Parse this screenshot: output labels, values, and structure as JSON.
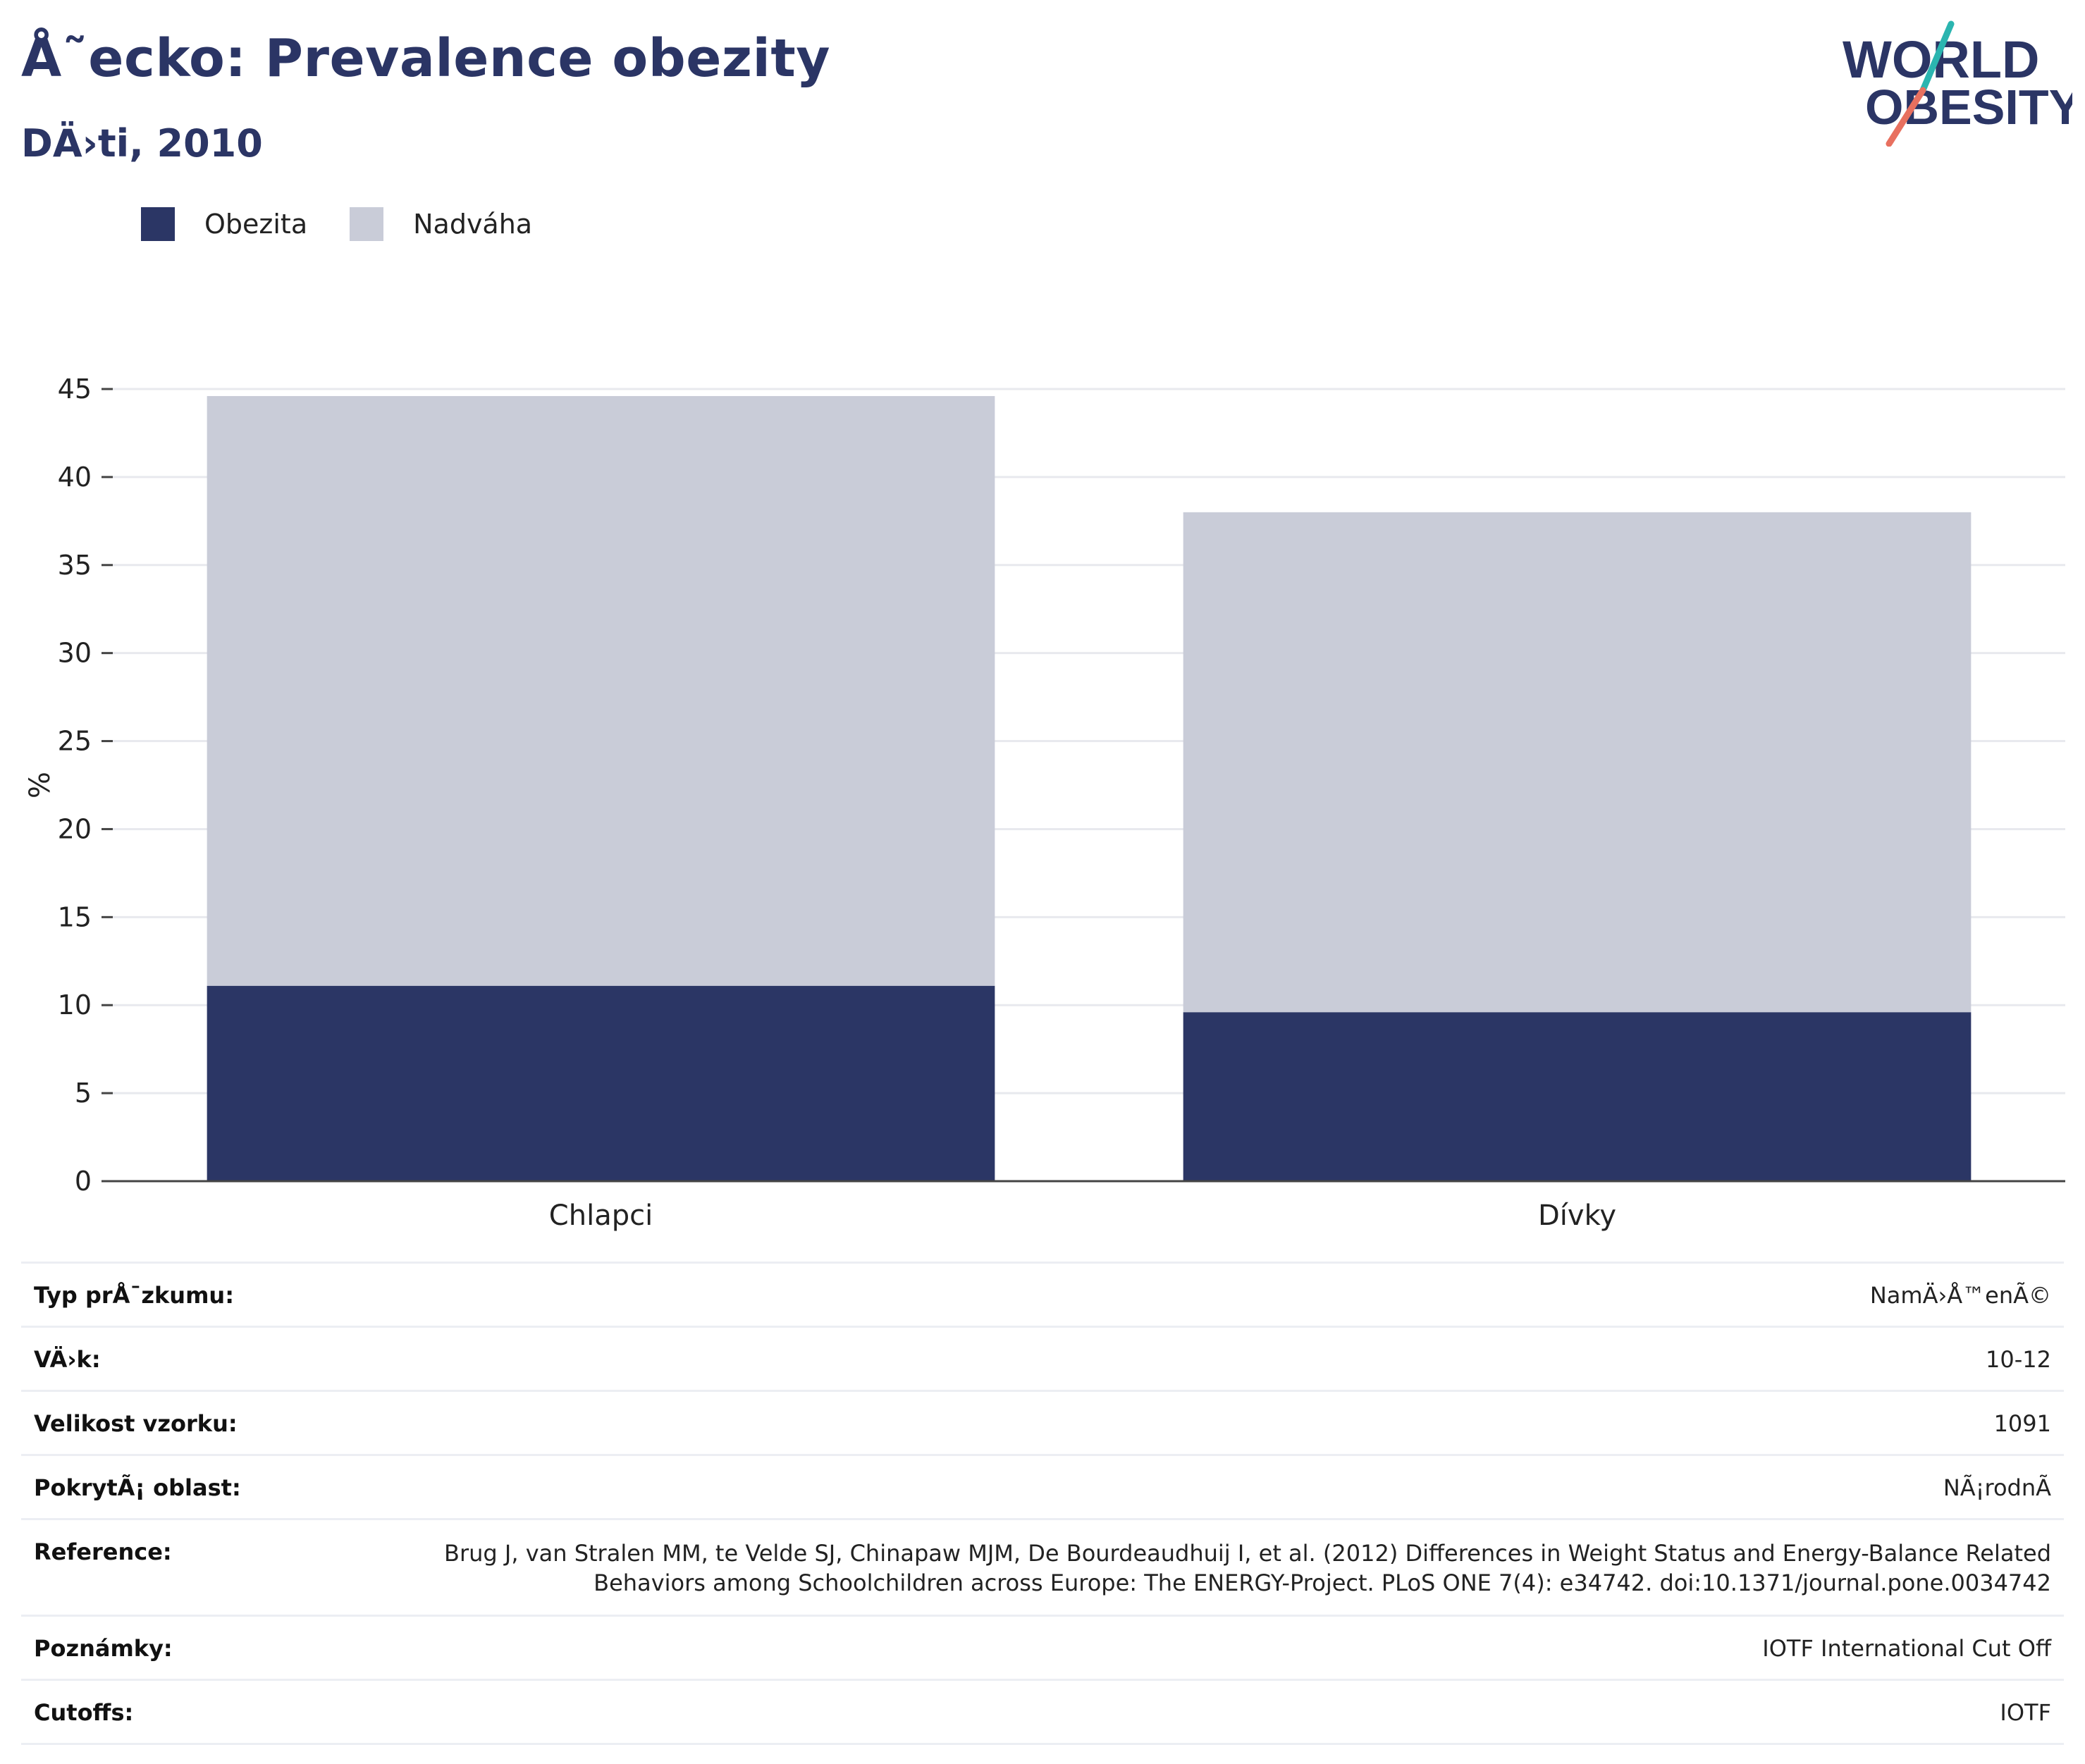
{
  "header": {
    "title": "Å˜ecko: Prevalence obezity",
    "subtitle": "DÄ›ti, 2010"
  },
  "logo": {
    "line1": "WORLD",
    "line2": "OBESITY",
    "icon": "world-obesity-logo"
  },
  "colors": {
    "obesity": "#2b3665",
    "overweight": "#c9ccd8",
    "title": "#2b3565",
    "accent_teal": "#2bb5b0",
    "accent_coral": "#e8705f"
  },
  "chart_data": {
    "type": "bar",
    "stacked": true,
    "categories": [
      "Chlapci",
      "Dívky"
    ],
    "series": [
      {
        "name": "Obezita",
        "values": [
          11.1,
          9.6
        ]
      },
      {
        "name": "Nadváha",
        "values": [
          33.5,
          28.4
        ]
      }
    ],
    "ylabel": "%",
    "ylim": [
      0,
      45
    ],
    "yticks": [
      0,
      5,
      10,
      15,
      20,
      25,
      30,
      35,
      40,
      45
    ],
    "grid": true,
    "legend_position": "top-left"
  },
  "info": [
    {
      "label": "Typ prÅ¯zkumu:",
      "value": "NamÄ›Å™enÃ©"
    },
    {
      "label": "VÄ›k:",
      "value": "10-12"
    },
    {
      "label": "Velikost vzorku:",
      "value": "1091"
    },
    {
      "label": "PokrytÃ¡ oblast:",
      "value": "NÃ¡rodnÃ"
    },
    {
      "label": "Reference:",
      "value": "Brug J, van Stralen MM, te Velde SJ, Chinapaw MJM, De Bourdeaudhuij I, et al. (2012) Differences in Weight Status and Energy-Balance Related Behaviors among Schoolchildren across Europe: The ENERGY-Project. PLoS ONE 7(4): e34742. doi:10.1371/journal.pone.0034742"
    },
    {
      "label": "Poznámky:",
      "value": "IOTF International Cut Off"
    },
    {
      "label": "Cutoffs:",
      "value": "IOTF"
    }
  ]
}
